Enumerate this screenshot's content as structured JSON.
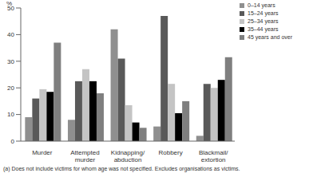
{
  "chart_data": {
    "type": "bar",
    "y_label": "%",
    "categories": [
      "Murder",
      "Attempted murder",
      "Kidnapping/abduction",
      "Robbery",
      "Blackmail/extortion"
    ],
    "series": [
      {
        "name": "0–14 years",
        "color": "#8f8f8f",
        "values": [
          9,
          8,
          42,
          5.5,
          2
        ]
      },
      {
        "name": "15–24 years",
        "color": "#595959",
        "values": [
          16,
          22.5,
          31,
          47,
          21.5
        ]
      },
      {
        "name": "25–34 years",
        "color": "#c4c4c4",
        "values": [
          19.5,
          27,
          13.5,
          21.5,
          20
        ]
      },
      {
        "name": "35–44 years",
        "color": "#000000",
        "values": [
          18.5,
          22.5,
          7,
          10.5,
          23
        ]
      },
      {
        "name": "45 years and over",
        "color": "#7f7f7f",
        "values": [
          37,
          18,
          5,
          15,
          31.5
        ]
      }
    ],
    "ylim": [
      0,
      50
    ],
    "yticks": [
      0,
      10,
      20,
      30,
      40,
      50
    ],
    "grid": false,
    "legend": "top-right",
    "note": "(a) Does not include victims for whom age was not specified. Excludes organisations as victims."
  }
}
